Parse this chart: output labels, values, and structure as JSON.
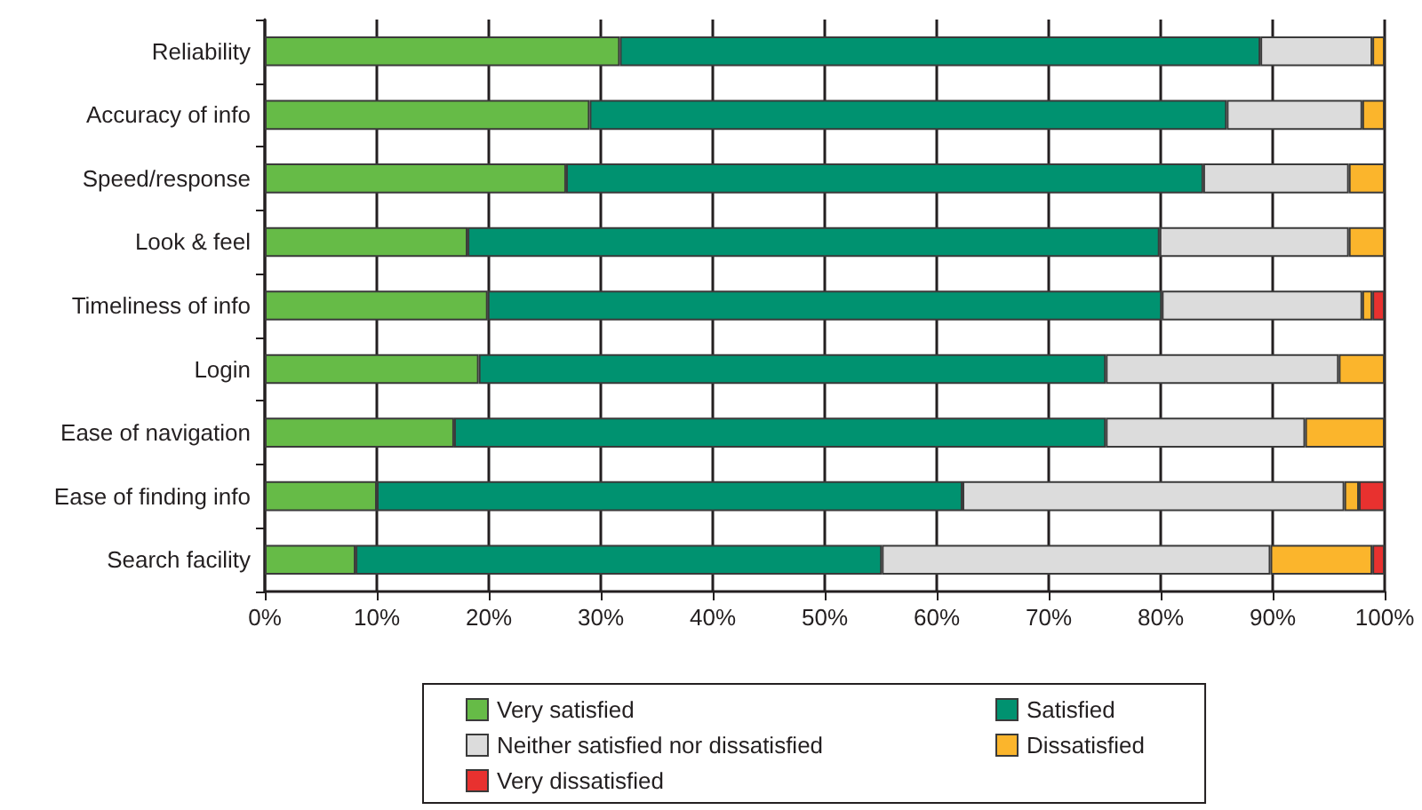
{
  "chart_data": {
    "type": "bar",
    "orientation": "horizontal",
    "stacked": true,
    "categories": [
      "Reliability",
      "Accuracy of info",
      "Speed/response",
      "Look & feel",
      "Timeliness of info",
      "Login",
      "Ease of navigation",
      "Ease of finding info",
      "Search facility"
    ],
    "series": [
      {
        "name": "Very satisfied",
        "color": "#66bb47",
        "values": [
          31.7,
          29,
          26.9,
          18.1,
          19.9,
          19.1,
          16.9,
          10,
          8.1
        ]
      },
      {
        "name": "Satisfied",
        "color": "#009270",
        "values": [
          57.2,
          56.9,
          56.9,
          61.8,
          60.2,
          56,
          58.2,
          52.3,
          47
        ]
      },
      {
        "name": "Neither satisfied nor dissatisfied",
        "color": "#dcdcdc",
        "values": [
          10,
          12.1,
          13,
          16.9,
          17.9,
          20.8,
          17.8,
          34.1,
          34.7
        ]
      },
      {
        "name": "Dissatisfied",
        "color": "#fbb52c",
        "values": [
          1.1,
          2,
          3.2,
          3.2,
          0.9,
          4.1,
          7.1,
          1.3,
          9.1
        ]
      },
      {
        "name": "Very dissatisfied",
        "color": "#e8312f",
        "values": [
          null,
          null,
          null,
          null,
          1.1,
          null,
          null,
          2.3,
          1.1
        ]
      }
    ],
    "xlim": [
      0,
      100
    ],
    "xticks": [
      {
        "value": 0,
        "label": "0%"
      },
      {
        "value": 10,
        "label": "10%"
      },
      {
        "value": 20,
        "label": "20%"
      },
      {
        "value": 30,
        "label": "30%"
      },
      {
        "value": 40,
        "label": "40%"
      },
      {
        "value": 50,
        "label": "50%"
      },
      {
        "value": 60,
        "label": "60%"
      },
      {
        "value": 70,
        "label": "70%"
      },
      {
        "value": 80,
        "label": "80%"
      },
      {
        "value": 90,
        "label": "90%"
      },
      {
        "value": 100,
        "label": "100%"
      }
    ],
    "grid": "x",
    "legend": "bottom"
  }
}
